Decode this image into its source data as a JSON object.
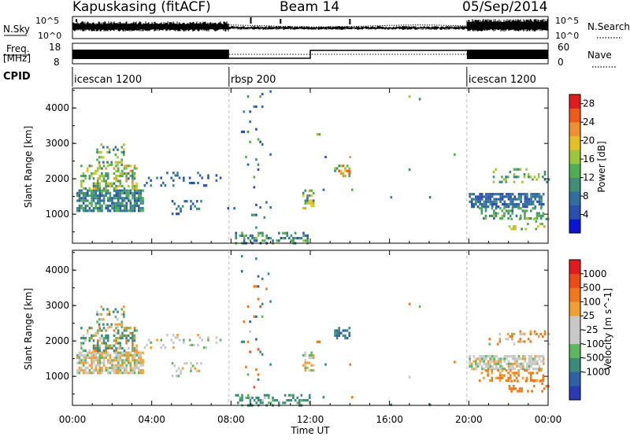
{
  "header": {
    "station": "Kapuskasing (fitACF)",
    "beam": "Beam 14",
    "date": "05/Sep/2014"
  },
  "summary": {
    "nsky_label": "N.Sky",
    "nsearch_label": "N.Search",
    "freq_label_1": "Freq.",
    "freq_label_2": "[MHz]",
    "nave_label": "Nave",
    "cpid_label": "CPID",
    "noise_ticks": [
      "10^5",
      "10^0"
    ],
    "noise_ticks_right": [
      "10^5",
      "10^0"
    ],
    "freq_ticks": [
      "18",
      "8"
    ],
    "nave_ticks": [
      "60",
      "0"
    ]
  },
  "cpid_segments": [
    {
      "label": "icescan 1200",
      "start_hour": 0,
      "end_hour": 7.9
    },
    {
      "label": "rbsp 200",
      "start_hour": 7.9,
      "end_hour": 19.9
    },
    {
      "label": "icescan 1200",
      "start_hour": 19.9,
      "end_hour": 24
    }
  ],
  "colors": {
    "power_scale": [
      "#0a14d6",
      "#2a4fb0",
      "#2f6e9e",
      "#3f8f74",
      "#4fae4f",
      "#9bc83a",
      "#e6c020",
      "#f09030",
      "#ef5a18",
      "#e31a1c"
    ],
    "velocity_scale": [
      "#2a3ab5",
      "#3060a8",
      "#3a8c78",
      "#5cb85c",
      "#c8c8c8",
      "#c8c8c8",
      "#f0a030",
      "#f07818",
      "#ec4a18",
      "#e31a1c"
    ]
  },
  "chart_data": [
    {
      "type": "heatmap",
      "title": "",
      "xlabel": "Time UT",
      "ylabel": "Slant Range [km]",
      "x_ticks": [
        "00:00",
        "04:00",
        "08:00",
        "12:00",
        "16:00",
        "20:00",
        "00:00"
      ],
      "xlim_hours": [
        0,
        24
      ],
      "y_ticks": [
        "1000",
        "2000",
        "3000",
        "4000"
      ],
      "ylim": [
        180,
        4560
      ],
      "colorbar": {
        "label": "Power [dB]",
        "ticks": [
          "4",
          "8",
          "12",
          "16",
          "20",
          "24",
          "28"
        ],
        "range": [
          0,
          30
        ]
      },
      "echo_regions": [
        {
          "t": [
            0.2,
            3.6
          ],
          "r": [
            1100,
            1700
          ],
          "value_range": [
            4,
            14
          ],
          "density": 0.75
        },
        {
          "t": [
            0.4,
            3.2
          ],
          "r": [
            1700,
            2400
          ],
          "value_range": [
            8,
            22
          ],
          "density": 0.45
        },
        {
          "t": [
            1.2,
            2.6
          ],
          "r": [
            2400,
            3000
          ],
          "value_range": [
            6,
            20
          ],
          "density": 0.3
        },
        {
          "t": [
            3.6,
            7.5
          ],
          "r": [
            1800,
            2200
          ],
          "value_range": [
            4,
            10
          ],
          "density": 0.15
        },
        {
          "t": [
            5.0,
            6.5
          ],
          "r": [
            1000,
            1400
          ],
          "value_range": [
            4,
            12
          ],
          "density": 0.2
        },
        {
          "t": [
            7.6,
            8.2
          ],
          "r": [
            1000,
            1200
          ],
          "value_range": [
            4,
            8
          ],
          "density": 0.25
        },
        {
          "t": [
            8.2,
            12.0
          ],
          "r": [
            200,
            500
          ],
          "value_range": [
            4,
            16
          ],
          "density": 0.35
        },
        {
          "t": [
            8.5,
            10.0
          ],
          "r": [
            600,
            4500
          ],
          "value_range": [
            4,
            14
          ],
          "density": 0.05
        },
        {
          "t": [
            11.6,
            12.2
          ],
          "r": [
            1200,
            1700
          ],
          "value_range": [
            6,
            22
          ],
          "density": 0.5
        },
        {
          "t": [
            13.2,
            14.0
          ],
          "r": [
            2100,
            2400
          ],
          "value_range": [
            10,
            28
          ],
          "density": 0.6
        },
        {
          "t": [
            12.0,
            19.5
          ],
          "r": [
            200,
            4500
          ],
          "value_range": [
            4,
            20
          ],
          "density": 0.004
        },
        {
          "t": [
            20.0,
            23.8
          ],
          "r": [
            1200,
            1600
          ],
          "value_range": [
            4,
            10
          ],
          "density": 0.7
        },
        {
          "t": [
            20.5,
            23.8
          ],
          "r": [
            900,
            1200
          ],
          "value_range": [
            8,
            16
          ],
          "density": 0.35
        },
        {
          "t": [
            22.0,
            24.0
          ],
          "r": [
            550,
            900
          ],
          "value_range": [
            10,
            22
          ],
          "density": 0.35
        },
        {
          "t": [
            21.0,
            24.0
          ],
          "r": [
            1900,
            2300
          ],
          "value_range": [
            8,
            18
          ],
          "density": 0.25
        }
      ]
    },
    {
      "type": "heatmap",
      "title": "",
      "xlabel": "Time UT",
      "ylabel": "Slant Range [km]",
      "x_ticks": [
        "00:00",
        "04:00",
        "08:00",
        "12:00",
        "16:00",
        "20:00",
        "00:00"
      ],
      "xlim_hours": [
        0,
        24
      ],
      "y_ticks": [
        "1000",
        "2000",
        "3000",
        "4000"
      ],
      "ylim": [
        180,
        4560
      ],
      "colorbar": {
        "label": "Velocity [m s^-1]",
        "ticks": [
          "1000",
          "500",
          "100",
          "25",
          "-25",
          "-100",
          "-500",
          "-1000"
        ],
        "range": [
          -1000,
          1000
        ]
      },
      "echo_regions": [
        {
          "t": [
            0.2,
            3.6
          ],
          "r": [
            1100,
            1700
          ],
          "value_range": [
            -50,
            60
          ],
          "density": 0.75
        },
        {
          "t": [
            0.4,
            3.2
          ],
          "r": [
            1700,
            2400
          ],
          "value_range": [
            -300,
            150
          ],
          "density": 0.45
        },
        {
          "t": [
            1.2,
            2.6
          ],
          "r": [
            2400,
            3000
          ],
          "value_range": [
            -200,
            100
          ],
          "density": 0.3
        },
        {
          "t": [
            3.6,
            7.5
          ],
          "r": [
            1800,
            2200
          ],
          "value_range": [
            -40,
            40
          ],
          "density": 0.15
        },
        {
          "t": [
            5.0,
            6.5
          ],
          "r": [
            1000,
            1400
          ],
          "value_range": [
            -40,
            40
          ],
          "density": 0.2
        },
        {
          "t": [
            8.2,
            12.0
          ],
          "r": [
            200,
            500
          ],
          "value_range": [
            -400,
            0
          ],
          "density": 0.35
        },
        {
          "t": [
            8.5,
            10.0
          ],
          "r": [
            600,
            4500
          ],
          "value_range": [
            -600,
            600
          ],
          "density": 0.05
        },
        {
          "t": [
            11.6,
            12.2
          ],
          "r": [
            1200,
            1700
          ],
          "value_range": [
            -60,
            60
          ],
          "density": 0.45
        },
        {
          "t": [
            13.2,
            14.0
          ],
          "r": [
            2100,
            2400
          ],
          "value_range": [
            -700,
            -300
          ],
          "density": 0.6
        },
        {
          "t": [
            12.0,
            19.5
          ],
          "r": [
            200,
            4500
          ],
          "value_range": [
            -500,
            500
          ],
          "density": 0.004
        },
        {
          "t": [
            20.0,
            23.8
          ],
          "r": [
            1200,
            1600
          ],
          "value_range": [
            -40,
            40
          ],
          "density": 0.7
        },
        {
          "t": [
            20.5,
            23.8
          ],
          "r": [
            900,
            1200
          ],
          "value_range": [
            50,
            200
          ],
          "density": 0.35
        },
        {
          "t": [
            22.0,
            24.0
          ],
          "r": [
            550,
            900
          ],
          "value_range": [
            100,
            300
          ],
          "density": 0.35
        },
        {
          "t": [
            21.0,
            24.0
          ],
          "r": [
            1900,
            2300
          ],
          "value_range": [
            -40,
            150
          ],
          "density": 0.25
        }
      ]
    }
  ]
}
